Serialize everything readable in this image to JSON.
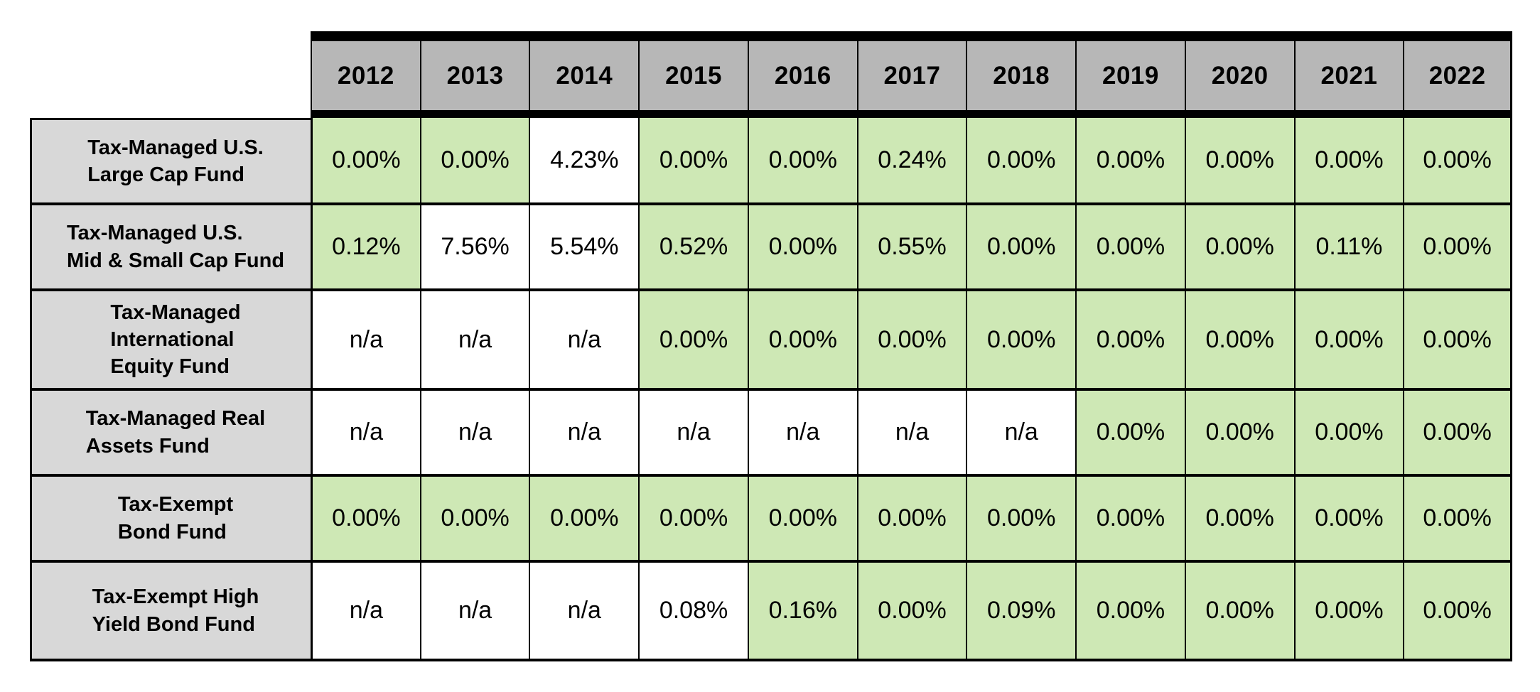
{
  "colors": {
    "header_bg": "#b7b7b7",
    "label_bg": "#d8d8d8",
    "green_bg": "#cee8b5",
    "border": "#000000",
    "page_bg": "#ffffff"
  },
  "table": {
    "years": [
      "2012",
      "2013",
      "2014",
      "2015",
      "2016",
      "2017",
      "2018",
      "2019",
      "2020",
      "2021",
      "2022"
    ],
    "rows": [
      {
        "fund": "Tax-Managed U.S.\nLarge Cap Fund",
        "values": [
          "0.00%",
          "0.00%",
          "4.23%",
          "0.00%",
          "0.00%",
          "0.24%",
          "0.00%",
          "0.00%",
          "0.00%",
          "0.00%",
          "0.00%"
        ],
        "green": [
          true,
          true,
          false,
          true,
          true,
          true,
          true,
          true,
          true,
          true,
          true
        ]
      },
      {
        "fund": "Tax-Managed U.S.\nMid & Small Cap Fund",
        "values": [
          "0.12%",
          "7.56%",
          "5.54%",
          "0.52%",
          "0.00%",
          "0.55%",
          "0.00%",
          "0.00%",
          "0.00%",
          "0.11%",
          "0.00%"
        ],
        "green": [
          true,
          false,
          false,
          true,
          true,
          true,
          true,
          true,
          true,
          true,
          true
        ]
      },
      {
        "fund": "Tax-Managed\nInternational\nEquity Fund",
        "values": [
          "n/a",
          "n/a",
          "n/a",
          "0.00%",
          "0.00%",
          "0.00%",
          "0.00%",
          "0.00%",
          "0.00%",
          "0.00%",
          "0.00%"
        ],
        "green": [
          false,
          false,
          false,
          true,
          true,
          true,
          true,
          true,
          true,
          true,
          true
        ]
      },
      {
        "fund": "Tax-Managed Real\nAssets Fund",
        "values": [
          "n/a",
          "n/a",
          "n/a",
          "n/a",
          "n/a",
          "n/a",
          "n/a",
          "0.00%",
          "0.00%",
          "0.00%",
          "0.00%"
        ],
        "green": [
          false,
          false,
          false,
          false,
          false,
          false,
          false,
          true,
          true,
          true,
          true
        ]
      },
      {
        "fund": "Tax-Exempt\nBond Fund",
        "values": [
          "0.00%",
          "0.00%",
          "0.00%",
          "0.00%",
          "0.00%",
          "0.00%",
          "0.00%",
          "0.00%",
          "0.00%",
          "0.00%",
          "0.00%"
        ],
        "green": [
          true,
          true,
          true,
          true,
          true,
          true,
          true,
          true,
          true,
          true,
          true
        ]
      },
      {
        "fund": "Tax-Exempt High\nYield Bond Fund",
        "values": [
          "n/a",
          "n/a",
          "n/a",
          "0.08%",
          "0.16%",
          "0.00%",
          "0.09%",
          "0.00%",
          "0.00%",
          "0.00%",
          "0.00%"
        ],
        "green": [
          false,
          false,
          false,
          false,
          true,
          true,
          true,
          true,
          true,
          true,
          true
        ]
      }
    ]
  }
}
